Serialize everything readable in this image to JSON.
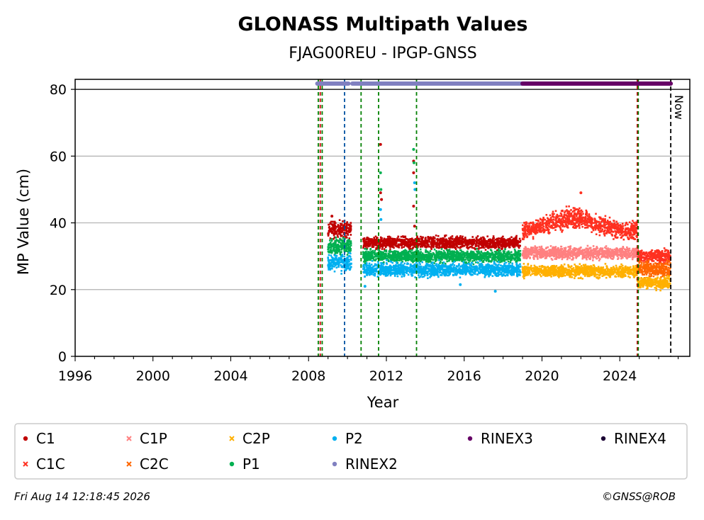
{
  "chart_data": {
    "type": "scatter",
    "title": "GLONASS Multipath Values",
    "subtitle": "FJAG00REU - IPGP-GNSS",
    "xlabel": "Year",
    "ylabel": "MP Value (cm)",
    "xlim": [
      1996,
      2027.6
    ],
    "ylim": [
      0,
      83
    ],
    "xticks": [
      1996,
      2000,
      2004,
      2008,
      2012,
      2016,
      2020,
      2024
    ],
    "yticks": [
      0,
      20,
      40,
      60,
      80
    ],
    "grid": "horizontal",
    "now_label": "Now",
    "now_year": 2026.62,
    "reference_line": 80,
    "legend_position": "bottom",
    "legend": [
      {
        "name": "C1",
        "color": "#c00000",
        "marker": "dot"
      },
      {
        "name": "C1P",
        "color": "#ff8080",
        "marker": "x"
      },
      {
        "name": "C2P",
        "color": "#ffb000",
        "marker": "x"
      },
      {
        "name": "P2",
        "color": "#00b0f0",
        "marker": "dot"
      },
      {
        "name": "RINEX3",
        "color": "#660066",
        "marker": "dot"
      },
      {
        "name": "RINEX4",
        "color": "#1a0033",
        "marker": "dot"
      },
      {
        "name": "C1C",
        "color": "#ff3020",
        "marker": "x"
      },
      {
        "name": "C2C",
        "color": "#ff6600",
        "marker": "x"
      },
      {
        "name": "P1",
        "color": "#00b050",
        "marker": "dot"
      },
      {
        "name": "RINEX2",
        "color": "#8080c0",
        "marker": "dot"
      }
    ],
    "series": [
      {
        "name": "C1",
        "color": "#c00000",
        "segments": [
          [
            2009.0,
            2010.2,
            38,
            2.2
          ],
          [
            2010.8,
            2018.9,
            34,
            1.6
          ]
        ]
      },
      {
        "name": "P1",
        "color": "#00b050",
        "segments": [
          [
            2009.0,
            2010.2,
            33,
            2.2
          ],
          [
            2010.8,
            2018.9,
            30,
            1.6
          ]
        ]
      },
      {
        "name": "P2",
        "color": "#00b0f0",
        "segments": [
          [
            2009.0,
            2010.2,
            28,
            2.2
          ],
          [
            2010.8,
            2018.9,
            26,
            1.8
          ]
        ]
      },
      {
        "name": "C1C",
        "color": "#ff3020",
        "segments": [
          [
            2019.0,
            2024.9,
            39,
            2.5,
            "hump"
          ],
          [
            2024.9,
            2026.6,
            30,
            1.8
          ]
        ]
      },
      {
        "name": "C1P",
        "color": "#ff8080",
        "segments": [
          [
            2019.0,
            2024.9,
            31,
            1.6
          ]
        ]
      },
      {
        "name": "C2C",
        "color": "#ff6600",
        "segments": [
          [
            2024.9,
            2026.6,
            26,
            2.0
          ]
        ]
      },
      {
        "name": "C2P",
        "color": "#ffb000",
        "segments": [
          [
            2019.0,
            2024.9,
            25.5,
            1.6
          ],
          [
            2024.9,
            2026.6,
            22,
            1.5
          ]
        ]
      }
    ],
    "outliers": [
      {
        "name": "C1",
        "x": 2011.7,
        "y": 63.5
      },
      {
        "name": "C1",
        "x": 2011.7,
        "y": 49
      },
      {
        "name": "C1",
        "x": 2011.75,
        "y": 47
      },
      {
        "name": "C1",
        "x": 2013.4,
        "y": 58.5
      },
      {
        "name": "C1",
        "x": 2013.4,
        "y": 55
      },
      {
        "name": "C1",
        "x": 2013.4,
        "y": 45
      },
      {
        "name": "C1",
        "x": 2013.45,
        "y": 39
      },
      {
        "name": "C1",
        "x": 2009.2,
        "y": 42
      },
      {
        "name": "P1",
        "x": 2011.7,
        "y": 55
      },
      {
        "name": "P1",
        "x": 2013.4,
        "y": 62
      },
      {
        "name": "P1",
        "x": 2013.42,
        "y": 58
      },
      {
        "name": "P1",
        "x": 2011.72,
        "y": 50
      },
      {
        "name": "P2",
        "x": 2011.7,
        "y": 44
      },
      {
        "name": "P2",
        "x": 2011.72,
        "y": 41
      },
      {
        "name": "P2",
        "x": 2013.45,
        "y": 52
      },
      {
        "name": "P2",
        "x": 2013.47,
        "y": 50
      },
      {
        "name": "P2",
        "x": 2017.6,
        "y": 19.5
      },
      {
        "name": "P2",
        "x": 2015.8,
        "y": 21.5
      },
      {
        "name": "P2",
        "x": 2010.9,
        "y": 21
      },
      {
        "name": "C1C",
        "x": 2022.0,
        "y": 49
      }
    ],
    "rinex_bars": [
      {
        "name": "RINEX2",
        "color": "#8080c0",
        "from": 2008.45,
        "to": 2010.05
      },
      {
        "name": "RINEX2",
        "color": "#8080c0",
        "from": 2010.25,
        "to": 2019.0
      },
      {
        "name": "RINEX3",
        "color": "#660066",
        "from": 2019.0,
        "to": 2026.62
      }
    ],
    "event_lines": [
      {
        "x": 2008.5,
        "color": "#008000"
      },
      {
        "x": 2008.6,
        "color": "#d00000"
      },
      {
        "x": 2008.7,
        "color": "#008000"
      },
      {
        "x": 2009.85,
        "color": "#0050a0"
      },
      {
        "x": 2010.7,
        "color": "#008000"
      },
      {
        "x": 2011.6,
        "color": "#008000"
      },
      {
        "x": 2013.55,
        "color": "#008000"
      },
      {
        "x": 2024.9,
        "color": "#d00000"
      },
      {
        "x": 2024.95,
        "color": "#008000"
      }
    ]
  },
  "footer": {
    "timestamp": "Fri Aug 14 12:18:45 2026",
    "copyright": "©GNSS@ROB"
  }
}
